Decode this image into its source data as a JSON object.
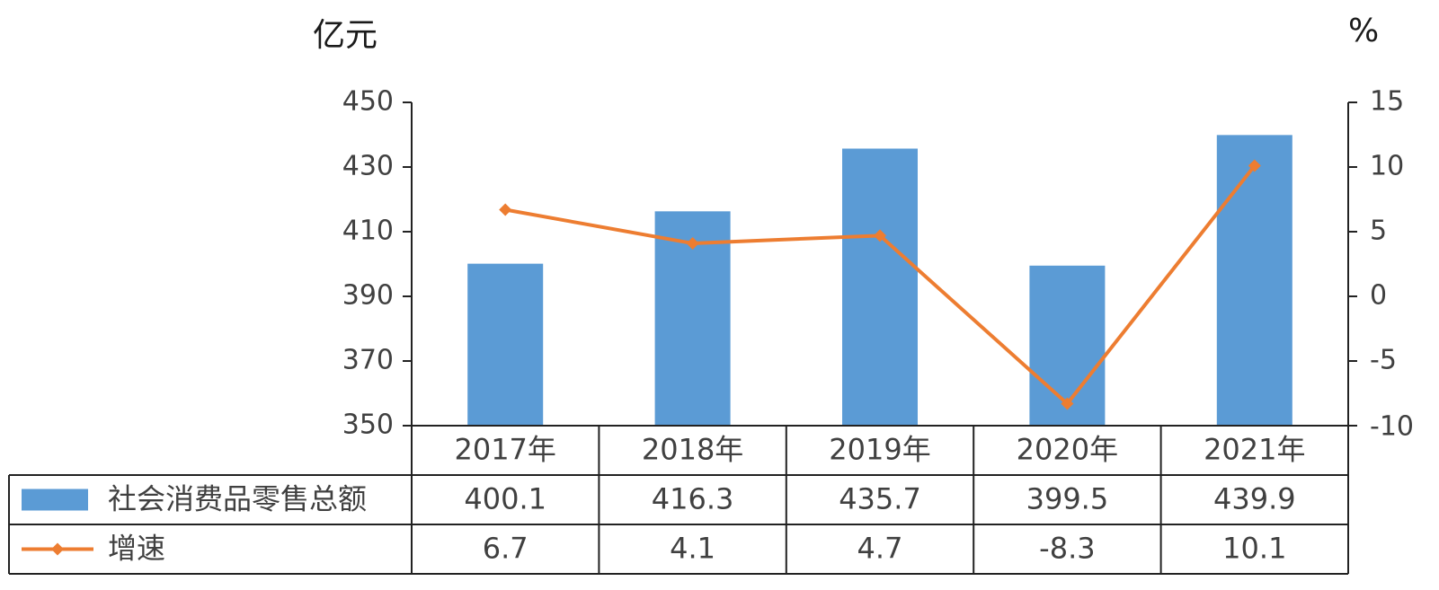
{
  "chart_data": {
    "type": "bar",
    "categories": [
      "2017年",
      "2018年",
      "2019年",
      "2020年",
      "2021年"
    ],
    "series": [
      {
        "name": "社会消费品零售总额",
        "type": "bar",
        "axis": "left",
        "color": "#5b9bd5",
        "values": [
          400.1,
          416.3,
          435.7,
          399.5,
          439.9
        ],
        "labels": [
          "400.1",
          "416.3",
          "435.7",
          "399.5",
          "439.9"
        ]
      },
      {
        "name": "增速",
        "type": "line",
        "axis": "right",
        "color": "#ed7d31",
        "marker": "diamond",
        "values": [
          6.7,
          4.1,
          4.7,
          -8.3,
          10.1
        ],
        "labels": [
          "6.7",
          "4.1",
          "4.7",
          "-8.3",
          "10.1"
        ]
      }
    ],
    "y_left": {
      "unit": "亿元",
      "ylim": [
        350,
        450
      ],
      "ticks": [
        "350",
        "370",
        "390",
        "410",
        "430",
        "450"
      ]
    },
    "y_right": {
      "unit": "%",
      "ylim": [
        -10,
        15
      ],
      "ticks": [
        "-10",
        "-5",
        "0",
        "5",
        "10",
        "15"
      ]
    },
    "data_table": true,
    "grid": false
  }
}
